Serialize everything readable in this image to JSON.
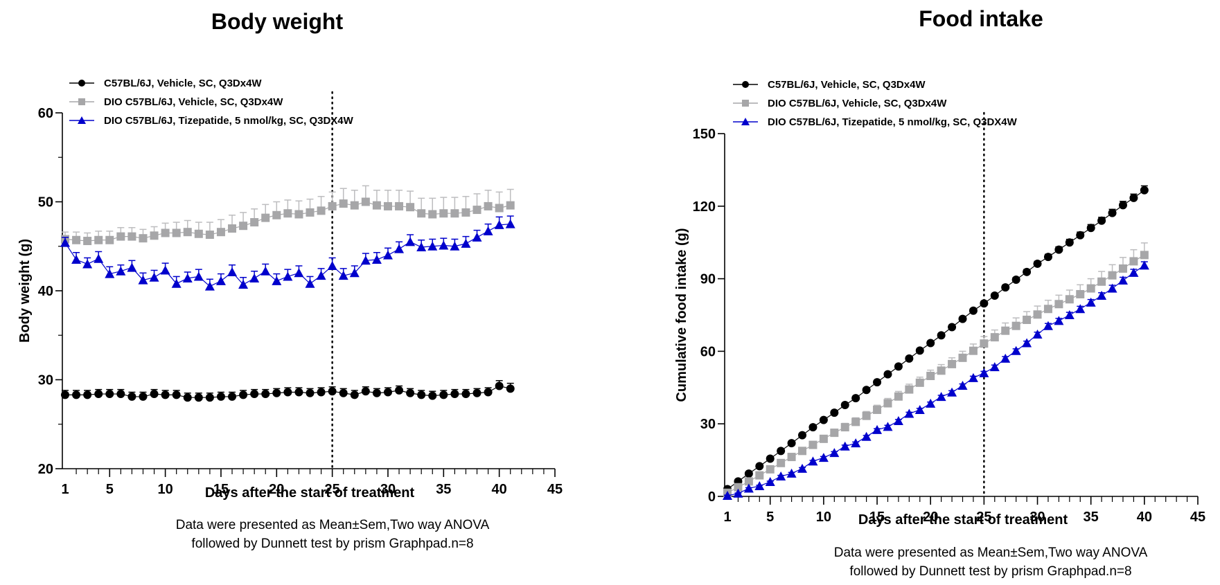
{
  "chart_data": [
    {
      "type": "line",
      "title": "Body weight",
      "xlabel": "Days after the start of treatment",
      "ylabel": "Body weight (g)",
      "xlim": [
        1,
        45
      ],
      "ylim": [
        20,
        60
      ],
      "xticks": [
        1,
        5,
        10,
        15,
        20,
        25,
        30,
        35,
        40,
        45
      ],
      "yticks": [
        20,
        30,
        40,
        50,
        60
      ],
      "reference_line_x": 25,
      "legend_position": "top-left",
      "note": [
        "Data were presented as Mean±Sem,Two way ANOVA",
        "followed by Dunnett test by prism Graphpad.n=8"
      ],
      "x": [
        1,
        2,
        3,
        4,
        5,
        6,
        7,
        8,
        9,
        10,
        11,
        12,
        13,
        14,
        15,
        16,
        17,
        18,
        19,
        20,
        21,
        22,
        23,
        24,
        25,
        26,
        27,
        28,
        29,
        30,
        31,
        32,
        33,
        34,
        35,
        36,
        37,
        38,
        39,
        40,
        41
      ],
      "series": [
        {
          "name": "C57BL/6J, Vehicle, SC, Q3Dx4W",
          "color": "#000000",
          "marker": "circle",
          "values": [
            28.3,
            28.3,
            28.3,
            28.4,
            28.4,
            28.4,
            28.1,
            28.1,
            28.4,
            28.3,
            28.3,
            28.0,
            28.0,
            28.0,
            28.1,
            28.1,
            28.3,
            28.4,
            28.4,
            28.5,
            28.6,
            28.6,
            28.5,
            28.6,
            28.7,
            28.5,
            28.3,
            28.7,
            28.5,
            28.6,
            28.8,
            28.5,
            28.3,
            28.2,
            28.3,
            28.4,
            28.4,
            28.5,
            28.6,
            29.3,
            29.0
          ],
          "sem": [
            0.5,
            0.5,
            0.5,
            0.5,
            0.5,
            0.5,
            0.5,
            0.5,
            0.5,
            0.5,
            0.5,
            0.5,
            0.5,
            0.5,
            0.5,
            0.5,
            0.5,
            0.5,
            0.5,
            0.5,
            0.5,
            0.5,
            0.5,
            0.5,
            0.5,
            0.5,
            0.5,
            0.5,
            0.5,
            0.5,
            0.5,
            0.5,
            0.5,
            0.5,
            0.5,
            0.5,
            0.5,
            0.5,
            0.5,
            0.6,
            0.6
          ]
        },
        {
          "name": "DIO C57BL/6J, Vehicle, SC, Q3Dx4W",
          "color": "#a6a6a8",
          "marker": "square",
          "values": [
            45.8,
            45.7,
            45.6,
            45.7,
            45.7,
            46.1,
            46.1,
            45.9,
            46.2,
            46.5,
            46.5,
            46.6,
            46.4,
            46.3,
            46.6,
            47.0,
            47.3,
            47.7,
            48.2,
            48.5,
            48.7,
            48.6,
            48.8,
            49.0,
            49.5,
            49.8,
            49.6,
            50.0,
            49.6,
            49.5,
            49.5,
            49.4,
            48.7,
            48.6,
            48.7,
            48.7,
            48.8,
            49.1,
            49.5,
            49.3,
            49.6
          ],
          "sem": [
            0.8,
            0.9,
            0.9,
            1.0,
            1.0,
            1.0,
            1.0,
            1.0,
            1.0,
            1.1,
            1.2,
            1.3,
            1.3,
            1.4,
            1.4,
            1.5,
            1.5,
            1.5,
            1.5,
            1.5,
            1.5,
            1.5,
            1.5,
            1.6,
            1.6,
            1.7,
            1.7,
            1.8,
            1.7,
            1.8,
            1.8,
            1.8,
            1.7,
            1.8,
            1.8,
            1.8,
            1.8,
            1.8,
            1.8,
            1.8,
            1.8
          ]
        },
        {
          "name": "DIO C57BL/6J, Tizepatide, 5 nmol/kg, SC, Q3DX4W",
          "color": "#0000cc",
          "marker": "triangle",
          "values": [
            45.4,
            43.5,
            43.0,
            43.6,
            41.9,
            42.2,
            42.6,
            41.2,
            41.5,
            42.3,
            40.8,
            41.4,
            41.6,
            40.5,
            41.1,
            42.1,
            40.7,
            41.4,
            42.2,
            41.1,
            41.6,
            42.0,
            40.8,
            41.7,
            42.8,
            41.7,
            42.0,
            43.4,
            43.5,
            44.0,
            44.7,
            45.5,
            44.9,
            45.0,
            45.1,
            45.0,
            45.3,
            46.0,
            46.7,
            47.4,
            47.5
          ],
          "sem": [
            0.6,
            0.8,
            0.7,
            0.8,
            0.8,
            0.7,
            0.8,
            0.8,
            0.8,
            0.8,
            0.8,
            0.7,
            0.8,
            0.8,
            0.8,
            0.8,
            0.8,
            0.8,
            0.8,
            0.8,
            0.8,
            0.8,
            0.8,
            0.8,
            0.9,
            0.8,
            0.8,
            0.8,
            0.8,
            0.8,
            0.8,
            0.8,
            0.8,
            0.8,
            0.8,
            0.8,
            0.8,
            0.8,
            0.8,
            0.9,
            0.9
          ]
        }
      ]
    },
    {
      "type": "line",
      "title": "Food intake",
      "xlabel": "Days after the start of treatment",
      "ylabel": "Cumulative food intake (g)",
      "xlim": [
        1,
        45
      ],
      "ylim": [
        0,
        150
      ],
      "xticks": [
        1,
        5,
        10,
        15,
        20,
        25,
        30,
        35,
        40,
        45
      ],
      "yticks": [
        0,
        30,
        60,
        90,
        120,
        150
      ],
      "reference_line_x": 25,
      "legend_position": "top-left",
      "note": [
        "Data were presented as Mean±Sem,Two way ANOVA",
        "followed by Dunnett test by prism Graphpad.n=8"
      ],
      "x": [
        1,
        2,
        3,
        4,
        5,
        6,
        7,
        8,
        9,
        10,
        11,
        12,
        13,
        14,
        15,
        16,
        17,
        18,
        19,
        20,
        21,
        22,
        23,
        24,
        25,
        26,
        27,
        28,
        29,
        30,
        31,
        32,
        33,
        34,
        35,
        36,
        37,
        38,
        39,
        40
      ],
      "series": [
        {
          "name": "C57BL/6J, Vehicle, SC, Q3Dx4W",
          "color": "#000000",
          "marker": "circle",
          "values": [
            3.0,
            6.2,
            9.4,
            12.5,
            15.6,
            18.8,
            22.0,
            25.3,
            28.6,
            31.6,
            34.6,
            37.8,
            40.6,
            44.0,
            47.2,
            50.5,
            53.7,
            57.0,
            60.3,
            63.4,
            66.6,
            70.0,
            73.4,
            76.8,
            79.8,
            83.0,
            86.4,
            89.6,
            92.8,
            96.2,
            99.0,
            102.0,
            105.0,
            108.0,
            111.0,
            114.0,
            117.2,
            120.4,
            123.4,
            126.6
          ],
          "sem": [
            0.3,
            0.3,
            0.3,
            0.4,
            0.4,
            0.4,
            0.4,
            0.4,
            0.5,
            0.5,
            0.5,
            0.5,
            0.5,
            0.5,
            0.6,
            0.6,
            0.6,
            0.6,
            0.6,
            0.7,
            0.7,
            0.7,
            0.7,
            0.8,
            0.8,
            0.8,
            0.9,
            0.9,
            1.0,
            1.0,
            1.1,
            1.2,
            1.3,
            1.3,
            1.4,
            1.4,
            1.5,
            1.6,
            1.6,
            1.8
          ]
        },
        {
          "name": "DIO C57BL/6J, Vehicle, SC, Q3Dx4W",
          "color": "#a6a6a8",
          "marker": "square",
          "values": [
            1.5,
            3.8,
            6.2,
            8.7,
            11.2,
            13.8,
            16.3,
            18.8,
            21.3,
            23.8,
            26.3,
            28.6,
            30.8,
            33.3,
            35.8,
            38.5,
            41.3,
            44.2,
            47.0,
            49.8,
            52.0,
            54.7,
            57.3,
            60.2,
            63.2,
            65.8,
            68.5,
            70.5,
            73.0,
            75.2,
            77.5,
            79.5,
            81.5,
            83.6,
            86.0,
            88.8,
            91.4,
            94.2,
            97.2,
            99.8
          ],
          "sem": [
            0.5,
            0.6,
            0.7,
            0.8,
            0.9,
            1.0,
            1.1,
            1.2,
            1.3,
            1.4,
            1.5,
            1.6,
            1.7,
            1.8,
            1.9,
            2.0,
            2.1,
            2.2,
            2.3,
            2.4,
            2.5,
            2.6,
            2.7,
            2.8,
            2.9,
            3.0,
            3.2,
            3.3,
            3.4,
            3.5,
            3.6,
            3.7,
            3.8,
            3.9,
            4.0,
            4.2,
            4.4,
            4.6,
            4.8,
            5.0
          ]
        },
        {
          "name": "DIO C57BL/6J, Tizepatide, 5 nmol/kg, SC, Q3DX4W",
          "color": "#0000cc",
          "marker": "triangle",
          "values": [
            0.3,
            1.2,
            3.3,
            4.3,
            6.0,
            8.3,
            9.5,
            11.5,
            14.5,
            16.0,
            18.0,
            20.7,
            22.0,
            24.7,
            27.5,
            28.8,
            31.2,
            34.2,
            35.8,
            38.4,
            41.2,
            43.0,
            45.8,
            49.0,
            51.0,
            53.5,
            57.0,
            60.2,
            63.4,
            67.0,
            70.5,
            72.6,
            75.0,
            77.5,
            80.2,
            83.0,
            86.0,
            89.3,
            92.5,
            95.5
          ],
          "sem": [
            0.2,
            0.2,
            0.3,
            0.3,
            0.3,
            0.4,
            0.4,
            0.4,
            0.4,
            0.5,
            0.5,
            0.5,
            0.5,
            0.5,
            0.5,
            0.6,
            0.6,
            0.6,
            0.6,
            0.6,
            0.6,
            0.7,
            0.7,
            0.7,
            0.7,
            0.8,
            0.8,
            0.8,
            0.8,
            0.9,
            1.0,
            1.0,
            1.1,
            1.1,
            1.2,
            1.2,
            1.3,
            1.3,
            1.4,
            1.5
          ]
        }
      ]
    }
  ]
}
